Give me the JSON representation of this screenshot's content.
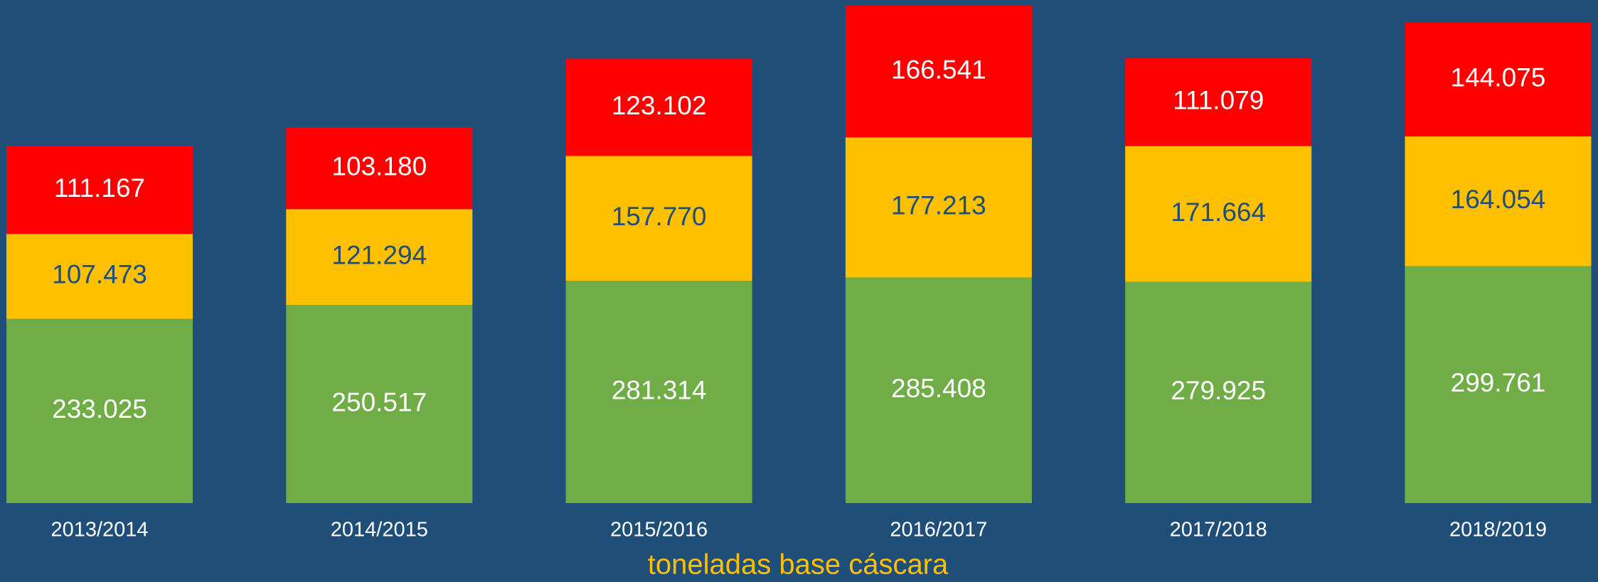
{
  "chart_data": {
    "type": "stacked_bar",
    "x_label": "toneladas base cáscara",
    "categories": [
      "2013/2014",
      "2014/2015",
      "2015/2016",
      "2016/2017",
      "2017/2018",
      "2018/2019"
    ],
    "series": [
      {
        "color": "#70ad47",
        "values": [
          233025,
          250517,
          281314,
          285408,
          279925,
          299761
        ],
        "value_labels": [
          "233.025",
          "250.517",
          "281.314",
          "285.408",
          "279.925",
          "299.761"
        ]
      },
      {
        "color": "#ffc000",
        "values": [
          107473,
          121294,
          157770,
          177213,
          171664,
          164054
        ],
        "value_labels": [
          "107.473",
          "121.294",
          "157.770",
          "177.213",
          "171.664",
          "164.054"
        ]
      },
      {
        "color": "#ff0000",
        "values": [
          111167,
          103180,
          123102,
          166541,
          111079,
          144075
        ],
        "value_labels": [
          "111.167",
          "103.180",
          "123.102",
          "166.541",
          "111.079",
          "144.075"
        ]
      }
    ]
  }
}
